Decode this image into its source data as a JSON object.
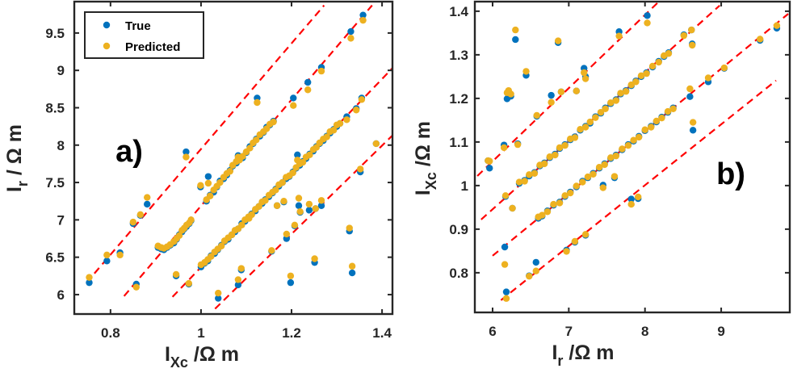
{
  "colors": {
    "true": "#0072BD",
    "predicted": "#EDB120",
    "reference": "#FF0000",
    "axes": "#262626"
  },
  "legend": {
    "items": [
      "True",
      "Predicted"
    ],
    "placement": "top-left"
  },
  "chart_data": [
    {
      "type": "scatter",
      "panel_label": "a)",
      "xlabel": {
        "main": "I",
        "sub": "Xc",
        "rest": " /Ω m"
      },
      "ylabel": {
        "main": "I",
        "sub": "r",
        "rest": " / Ω m"
      },
      "xlim": [
        0.72,
        1.423
      ],
      "ylim": [
        5.74,
        9.92
      ],
      "xticks": [
        0.8,
        1,
        1.2,
        1.4
      ],
      "xtick_labels": [
        "0.8",
        "1",
        "1.2",
        "1.4"
      ],
      "yticks": [
        6,
        6.5,
        7,
        7.5,
        8,
        8.5,
        9,
        9.5
      ],
      "ytick_labels": [
        "6",
        "6.5",
        "7",
        "7.5",
        "8",
        "8.5",
        "9",
        "9.5"
      ],
      "grid": false,
      "series_names": [
        "True",
        "Predicted"
      ],
      "points_format": [
        "x",
        "True",
        "Predicted"
      ],
      "points": [
        [
          1.358,
          9.74,
          9.67
        ],
        [
          1.331,
          9.52,
          9.43
        ],
        [
          1.266,
          9.04,
          8.99
        ],
        [
          1.236,
          8.84,
          8.74
        ],
        [
          1.204,
          8.63,
          8.53
        ],
        [
          1.124,
          8.63,
          8.57
        ],
        [
          1.355,
          8.63,
          8.61
        ],
        [
          1.343,
          8.49,
          8.47
        ],
        [
          1.322,
          8.38,
          8.34
        ],
        [
          1.387,
          8.02,
          8.02
        ],
        [
          0.967,
          7.91,
          7.84
        ],
        [
          0.753,
          6.16,
          6.23
        ],
        [
          0.792,
          6.45,
          6.53
        ],
        [
          0.821,
          6.56,
          6.53
        ],
        [
          0.85,
          6.95,
          6.97
        ],
        [
          0.866,
          7.06,
          7.07
        ],
        [
          0.881,
          7.21,
          7.3
        ],
        [
          0.857,
          6.14,
          6.1
        ],
        [
          0.945,
          6.25,
          6.27
        ],
        [
          0.973,
          6.14,
          6.15
        ],
        [
          0.999,
          7.44,
          7.46
        ],
        [
          1.016,
          7.58,
          7.49
        ],
        [
          1.038,
          5.95,
          6.02
        ],
        [
          1.082,
          6.13,
          6.2
        ],
        [
          1.089,
          6.33,
          6.35
        ],
        [
          1.156,
          6.58,
          6.59
        ],
        [
          1.189,
          6.75,
          6.81
        ],
        [
          1.207,
          6.92,
          6.93
        ],
        [
          1.198,
          6.16,
          6.25
        ],
        [
          1.216,
          7.19,
          7.29
        ],
        [
          1.219,
          7.1,
          7.11
        ],
        [
          1.239,
          7.13,
          7.21
        ],
        [
          1.253,
          7.15,
          7.15
        ],
        [
          1.266,
          7.19,
          7.26
        ],
        [
          1.251,
          6.43,
          6.48
        ],
        [
          1.328,
          6.85,
          6.89
        ],
        [
          1.334,
          6.29,
          6.38
        ],
        [
          1.352,
          7.64,
          7.68
        ],
        [
          1.183,
          7.24,
          7.25
        ],
        [
          1.168,
          7.19,
          7.19
        ],
        [
          1.106,
          7.03,
          7.02
        ],
        [
          1.082,
          7.86,
          7.84
        ],
        [
          1.213,
          7.87,
          7.8
        ],
        [
          0.905,
          6.63,
          6.65
        ],
        [
          0.912,
          6.61,
          6.63
        ],
        [
          0.918,
          6.6,
          6.62
        ],
        [
          0.925,
          6.63,
          6.64
        ],
        [
          0.932,
          6.66,
          6.67
        ],
        [
          0.94,
          6.69,
          6.71
        ],
        [
          0.946,
          6.74,
          6.75
        ],
        [
          0.952,
          6.8,
          6.79
        ],
        [
          0.958,
          6.84,
          6.86
        ],
        [
          0.963,
          6.88,
          6.89
        ],
        [
          0.968,
          6.91,
          6.93
        ],
        [
          0.974,
          6.95,
          6.96
        ],
        [
          0.978,
          6.99,
          7.0
        ],
        [
          1.012,
          7.25,
          7.27
        ],
        [
          1.02,
          7.33,
          7.32
        ],
        [
          1.028,
          7.37,
          7.4
        ],
        [
          1.035,
          7.44,
          7.45
        ],
        [
          1.042,
          7.52,
          7.5
        ],
        [
          1.05,
          7.55,
          7.57
        ],
        [
          1.057,
          7.6,
          7.62
        ],
        [
          1.064,
          7.66,
          7.65
        ],
        [
          1.07,
          7.72,
          7.73
        ],
        [
          1.078,
          7.76,
          7.78
        ],
        [
          1.085,
          7.81,
          7.8
        ],
        [
          1.092,
          7.83,
          7.85
        ],
        [
          1.1,
          7.9,
          7.91
        ],
        [
          1.108,
          7.98,
          7.96
        ],
        [
          1.115,
          8.02,
          8.03
        ],
        [
          1.122,
          8.08,
          8.07
        ],
        [
          1.13,
          8.12,
          8.14
        ],
        [
          1.138,
          8.17,
          8.18
        ],
        [
          1.145,
          8.24,
          8.22
        ],
        [
          1.152,
          8.27,
          8.28
        ],
        [
          1.16,
          8.32,
          8.31
        ],
        [
          1.0,
          6.37,
          6.4
        ],
        [
          1.008,
          6.42,
          6.43
        ],
        [
          1.015,
          6.45,
          6.47
        ],
        [
          1.022,
          6.52,
          6.51
        ],
        [
          1.03,
          6.55,
          6.57
        ],
        [
          1.037,
          6.6,
          6.61
        ],
        [
          1.045,
          6.66,
          6.65
        ],
        [
          1.052,
          6.71,
          6.72
        ],
        [
          1.06,
          6.74,
          6.76
        ],
        [
          1.068,
          6.8,
          6.8
        ],
        [
          1.075,
          6.84,
          6.86
        ],
        [
          1.082,
          6.88,
          6.88
        ],
        [
          1.09,
          6.95,
          6.93
        ],
        [
          1.097,
          6.98,
          7.0
        ],
        [
          1.105,
          7.03,
          7.04
        ],
        [
          1.112,
          7.08,
          7.07
        ],
        [
          1.12,
          7.12,
          7.14
        ],
        [
          1.128,
          7.18,
          7.18
        ],
        [
          1.135,
          7.22,
          7.24
        ],
        [
          1.142,
          7.27,
          7.26
        ],
        [
          1.15,
          7.31,
          7.33
        ],
        [
          1.158,
          7.36,
          7.37
        ],
        [
          1.165,
          7.41,
          7.4
        ],
        [
          1.172,
          7.45,
          7.47
        ],
        [
          1.18,
          7.5,
          7.5
        ],
        [
          1.188,
          7.55,
          7.57
        ],
        [
          1.195,
          7.58,
          7.59
        ],
        [
          1.203,
          7.64,
          7.63
        ],
        [
          1.21,
          7.69,
          7.7
        ],
        [
          1.218,
          7.73,
          7.75
        ],
        [
          1.225,
          7.78,
          7.77
        ],
        [
          1.232,
          7.82,
          7.84
        ],
        [
          1.24,
          7.88,
          7.87
        ],
        [
          1.248,
          7.92,
          7.94
        ],
        [
          1.255,
          7.98,
          7.97
        ],
        [
          1.262,
          8.02,
          8.03
        ],
        [
          1.27,
          8.06,
          8.08
        ],
        [
          1.278,
          8.12,
          8.11
        ],
        [
          1.285,
          8.16,
          8.18
        ],
        [
          1.293,
          8.21,
          8.2
        ],
        [
          1.3,
          8.25,
          8.27
        ],
        [
          1.307,
          8.29,
          8.29
        ]
      ],
      "reference_lines": [
        {
          "style": "dashed",
          "from": [
            0.747,
            6.16
          ],
          "to": [
            1.272,
            9.87
          ]
        },
        {
          "style": "dashed",
          "from": [
            0.83,
            5.98
          ],
          "to": [
            1.378,
            9.87
          ]
        },
        {
          "style": "dashed",
          "from": [
            0.937,
            5.97
          ],
          "to": [
            1.423,
            9.03
          ]
        },
        {
          "style": "dashed",
          "from": [
            1.031,
            5.81
          ],
          "to": [
            1.423,
            8.13
          ]
        }
      ]
    },
    {
      "type": "scatter",
      "panel_label": "b)",
      "xlabel": {
        "main": "I",
        "sub": "r",
        "rest": " /Ω m"
      },
      "ylabel": {
        "main": "I",
        "sub": "Xc",
        "rest": " /Ω m"
      },
      "xlim": [
        5.767,
        9.9
      ],
      "ylim": [
        0.709,
        1.422
      ],
      "xticks": [
        6,
        7,
        8,
        9
      ],
      "xtick_labels": [
        "6",
        "7",
        "8",
        "9"
      ],
      "yticks": [
        0.8,
        0.9,
        1,
        1.1,
        1.2,
        1.3,
        1.4
      ],
      "ytick_labels": [
        "0.8",
        "0.9",
        "1",
        "1.1",
        "1.2",
        "1.3",
        "1.4"
      ],
      "grid": false,
      "series_names": [
        "True",
        "Predicted"
      ],
      "points_format": [
        "x",
        "True",
        "Predicted"
      ],
      "points": [
        [
          8.03,
          1.39,
          1.373
        ],
        [
          7.66,
          1.353,
          1.343
        ],
        [
          6.3,
          1.335,
          1.357
        ],
        [
          6.86,
          1.328,
          1.332
        ],
        [
          8.61,
          1.357,
          1.357
        ],
        [
          8.51,
          1.346,
          1.344
        ],
        [
          8.62,
          1.325,
          1.322
        ],
        [
          9.73,
          1.361,
          1.367
        ],
        [
          9.51,
          1.333,
          1.336
        ],
        [
          9.04,
          1.269,
          1.27
        ],
        [
          8.83,
          1.238,
          1.247
        ],
        [
          8.59,
          1.204,
          1.222
        ],
        [
          8.63,
          1.127,
          1.145
        ],
        [
          6.44,
          1.253,
          1.262
        ],
        [
          6.19,
          1.199,
          1.213
        ],
        [
          6.21,
          1.205,
          1.218
        ],
        [
          6.24,
          1.205,
          1.21
        ],
        [
          6.58,
          1.159,
          1.161
        ],
        [
          6.77,
          1.207,
          1.191
        ],
        [
          6.9,
          1.215,
          1.215
        ],
        [
          7.2,
          1.269,
          1.259
        ],
        [
          7.22,
          1.25,
          1.245
        ],
        [
          7.1,
          1.217,
          1.217
        ],
        [
          6.15,
          1.093,
          1.087
        ],
        [
          6.33,
          1.096,
          1.094
        ],
        [
          5.94,
          1.057,
          1.057
        ],
        [
          5.96,
          1.04,
          1.056
        ],
        [
          6.17,
          0.975,
          0.977
        ],
        [
          6.26,
          0.948,
          0.948
        ],
        [
          6.16,
          0.859,
          0.819
        ],
        [
          7.45,
          1.001,
          0.995
        ],
        [
          7.6,
          1.018,
          1.021
        ],
        [
          7.82,
          0.969,
          0.957
        ],
        [
          7.91,
          0.97,
          0.974
        ],
        [
          7.22,
          0.886,
          0.888
        ],
        [
          7.08,
          0.87,
          0.872
        ],
        [
          6.97,
          0.852,
          0.849
        ],
        [
          6.57,
          0.824,
          0.804
        ],
        [
          6.48,
          0.793,
          0.792
        ],
        [
          6.18,
          0.756,
          0.741
        ],
        [
          6.35,
          1.005,
          1.008
        ],
        [
          6.42,
          1.012,
          1.01
        ],
        [
          6.48,
          1.022,
          1.025
        ],
        [
          6.55,
          1.03,
          1.028
        ],
        [
          6.62,
          1.045,
          1.047
        ],
        [
          6.68,
          1.052,
          1.05
        ],
        [
          6.75,
          1.064,
          1.066
        ],
        [
          6.82,
          1.072,
          1.07
        ],
        [
          6.88,
          1.085,
          1.087
        ],
        [
          6.95,
          1.094,
          1.092
        ],
        [
          7.02,
          1.105,
          1.107
        ],
        [
          7.08,
          1.112,
          1.11
        ],
        [
          7.15,
          1.127,
          1.129
        ],
        [
          7.22,
          1.136,
          1.134
        ],
        [
          7.28,
          1.143,
          1.146
        ],
        [
          7.35,
          1.158,
          1.156
        ],
        [
          7.42,
          1.166,
          1.168
        ],
        [
          7.48,
          1.178,
          1.176
        ],
        [
          7.55,
          1.188,
          1.19
        ],
        [
          7.62,
          1.197,
          1.195
        ],
        [
          7.68,
          1.21,
          1.212
        ],
        [
          7.75,
          1.218,
          1.216
        ],
        [
          7.82,
          1.229,
          1.231
        ],
        [
          7.88,
          1.24,
          1.238
        ],
        [
          7.95,
          1.25,
          1.252
        ],
        [
          8.02,
          1.259,
          1.257
        ],
        [
          8.1,
          1.272,
          1.274
        ],
        [
          8.18,
          1.285,
          1.283
        ],
        [
          8.25,
          1.296,
          1.298
        ],
        [
          8.31,
          1.305,
          1.303
        ],
        [
          6.6,
          0.925,
          0.928
        ],
        [
          6.65,
          0.93,
          0.932
        ],
        [
          6.72,
          0.942,
          0.94
        ],
        [
          6.8,
          0.955,
          0.957
        ],
        [
          6.88,
          0.962,
          0.96
        ],
        [
          6.95,
          0.975,
          0.977
        ],
        [
          7.02,
          0.985,
          0.983
        ],
        [
          7.1,
          0.997,
          0.999
        ],
        [
          7.18,
          1.01,
          1.008
        ],
        [
          7.25,
          1.018,
          1.02
        ],
        [
          7.32,
          1.028,
          1.026
        ],
        [
          7.4,
          1.04,
          1.042
        ],
        [
          7.47,
          1.05,
          1.048
        ],
        [
          7.55,
          1.062,
          1.064
        ],
        [
          7.62,
          1.07,
          1.068
        ],
        [
          7.7,
          1.082,
          1.084
        ],
        [
          7.78,
          1.094,
          1.092
        ],
        [
          7.85,
          1.102,
          1.104
        ],
        [
          7.92,
          1.113,
          1.111
        ],
        [
          8.0,
          1.126,
          1.128
        ],
        [
          8.08,
          1.136,
          1.134
        ],
        [
          8.15,
          1.146,
          1.148
        ],
        [
          8.22,
          1.157,
          1.155
        ],
        [
          8.3,
          1.168,
          1.17
        ],
        [
          8.37,
          1.178,
          1.176
        ]
      ],
      "reference_lines": [
        {
          "style": "dashed",
          "from": [
            5.8,
            1.022
          ],
          "to": [
            8.17,
            1.42
          ]
        },
        {
          "style": "dashed",
          "from": [
            5.85,
            0.922
          ],
          "to": [
            8.98,
            1.413
          ]
        },
        {
          "style": "dashed",
          "from": [
            6.0,
            0.839
          ],
          "to": [
            9.88,
            1.394
          ]
        },
        {
          "style": "dashed",
          "from": [
            6.11,
            0.737
          ],
          "to": [
            9.72,
            1.241
          ]
        }
      ]
    }
  ]
}
